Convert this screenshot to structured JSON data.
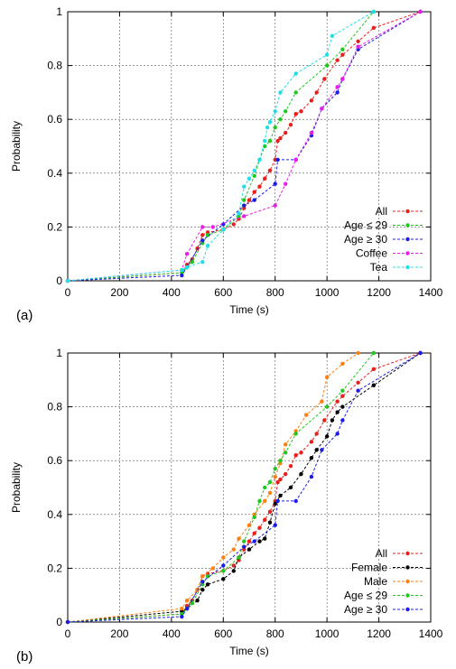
{
  "chart_data": [
    {
      "type": "line",
      "panel_label": "(a)",
      "xlabel": "Time (s)",
      "ylabel": "Probability",
      "xlim": [
        0,
        1400
      ],
      "ylim": [
        0,
        1
      ],
      "x_ticks": [
        "0",
        "200",
        "400",
        "600",
        "800",
        "1000",
        "1200",
        "1400"
      ],
      "y_ticks": [
        "0",
        "0.2",
        "0.4",
        "0.6",
        "0.8",
        "1"
      ],
      "grid": true,
      "legend_position": "bottom-right",
      "series": [
        {
          "name": "All",
          "color": "#e8201c",
          "points": [
            [
              0,
              0
            ],
            [
              440,
              0.03
            ],
            [
              460,
              0.06
            ],
            [
              480,
              0.08
            ],
            [
              500,
              0.12
            ],
            [
              520,
              0.17
            ],
            [
              540,
              0.18
            ],
            [
              600,
              0.19
            ],
            [
              640,
              0.21
            ],
            [
              660,
              0.23
            ],
            [
              680,
              0.27
            ],
            [
              700,
              0.3
            ],
            [
              720,
              0.33
            ],
            [
              740,
              0.35
            ],
            [
              760,
              0.38
            ],
            [
              780,
              0.41
            ],
            [
              800,
              0.45
            ],
            [
              810,
              0.52
            ],
            [
              820,
              0.53
            ],
            [
              840,
              0.55
            ],
            [
              860,
              0.58
            ],
            [
              880,
              0.62
            ],
            [
              900,
              0.63
            ],
            [
              940,
              0.67
            ],
            [
              960,
              0.7
            ],
            [
              990,
              0.75
            ],
            [
              1040,
              0.82
            ],
            [
              1060,
              0.84
            ],
            [
              1120,
              0.89
            ],
            [
              1180,
              0.94
            ],
            [
              1360,
              1
            ]
          ]
        },
        {
          "name": "Age ≤ 29",
          "color": "#1ec81e",
          "points": [
            [
              0,
              0
            ],
            [
              440,
              0.03
            ],
            [
              460,
              0.05
            ],
            [
              480,
              0.07
            ],
            [
              520,
              0.14
            ],
            [
              540,
              0.17
            ],
            [
              600,
              0.19
            ],
            [
              660,
              0.24
            ],
            [
              680,
              0.3
            ],
            [
              720,
              0.39
            ],
            [
              740,
              0.45
            ],
            [
              760,
              0.5
            ],
            [
              780,
              0.52
            ],
            [
              800,
              0.57
            ],
            [
              820,
              0.6
            ],
            [
              840,
              0.63
            ],
            [
              880,
              0.7
            ],
            [
              1000,
              0.8
            ],
            [
              1060,
              0.86
            ],
            [
              1180,
              1
            ]
          ]
        },
        {
          "name": "Age ≥ 30",
          "color": "#1c1ce8",
          "points": [
            [
              0,
              0
            ],
            [
              440,
              0.02
            ],
            [
              460,
              0.05
            ],
            [
              520,
              0.15
            ],
            [
              600,
              0.21
            ],
            [
              680,
              0.28
            ],
            [
              720,
              0.3
            ],
            [
              800,
              0.36
            ],
            [
              810,
              0.45
            ],
            [
              880,
              0.45
            ],
            [
              940,
              0.54
            ],
            [
              980,
              0.64
            ],
            [
              1040,
              0.7
            ],
            [
              1060,
              0.75
            ],
            [
              1120,
              0.86
            ],
            [
              1360,
              1
            ]
          ]
        },
        {
          "name": "Coffee",
          "color": "#e61ee6",
          "points": [
            [
              0,
              0
            ],
            [
              440,
              0.04
            ],
            [
              460,
              0.1
            ],
            [
              520,
              0.2
            ],
            [
              560,
              0.2
            ],
            [
              680,
              0.24
            ],
            [
              800,
              0.28
            ],
            [
              840,
              0.36
            ],
            [
              880,
              0.45
            ],
            [
              940,
              0.55
            ],
            [
              980,
              0.64
            ],
            [
              1040,
              0.72
            ],
            [
              1060,
              0.75
            ],
            [
              1120,
              0.87
            ],
            [
              1360,
              1
            ]
          ]
        },
        {
          "name": "Tea",
          "color": "#1ee0e6",
          "points": [
            [
              0,
              0
            ],
            [
              440,
              0.04
            ],
            [
              460,
              0.05
            ],
            [
              520,
              0.07
            ],
            [
              540,
              0.13
            ],
            [
              600,
              0.19
            ],
            [
              660,
              0.25
            ],
            [
              680,
              0.35
            ],
            [
              700,
              0.38
            ],
            [
              720,
              0.41
            ],
            [
              740,
              0.45
            ],
            [
              760,
              0.52
            ],
            [
              770,
              0.57
            ],
            [
              780,
              0.59
            ],
            [
              800,
              0.63
            ],
            [
              820,
              0.7
            ],
            [
              880,
              0.77
            ],
            [
              1000,
              0.84
            ],
            [
              1020,
              0.91
            ],
            [
              1180,
              1
            ]
          ]
        }
      ]
    },
    {
      "type": "line",
      "panel_label": "(b)",
      "xlabel": "Time (s)",
      "ylabel": "Probability",
      "xlim": [
        0,
        1400
      ],
      "ylim": [
        0,
        1
      ],
      "x_ticks": [
        "0",
        "200",
        "400",
        "600",
        "800",
        "1000",
        "1200",
        "1400"
      ],
      "y_ticks": [
        "0",
        "0.2",
        "0.4",
        "0.6",
        "0.8",
        "1"
      ],
      "grid": true,
      "legend_position": "bottom-right",
      "series": [
        {
          "name": "All",
          "color": "#e8201c",
          "points": [
            [
              0,
              0
            ],
            [
              440,
              0.03
            ],
            [
              460,
              0.06
            ],
            [
              480,
              0.08
            ],
            [
              500,
              0.12
            ],
            [
              520,
              0.17
            ],
            [
              540,
              0.18
            ],
            [
              600,
              0.19
            ],
            [
              640,
              0.21
            ],
            [
              660,
              0.23
            ],
            [
              680,
              0.27
            ],
            [
              700,
              0.3
            ],
            [
              720,
              0.33
            ],
            [
              740,
              0.35
            ],
            [
              760,
              0.38
            ],
            [
              780,
              0.41
            ],
            [
              800,
              0.45
            ],
            [
              810,
              0.52
            ],
            [
              820,
              0.53
            ],
            [
              840,
              0.55
            ],
            [
              860,
              0.58
            ],
            [
              880,
              0.62
            ],
            [
              900,
              0.63
            ],
            [
              940,
              0.67
            ],
            [
              960,
              0.7
            ],
            [
              990,
              0.75
            ],
            [
              1040,
              0.82
            ],
            [
              1060,
              0.84
            ],
            [
              1120,
              0.89
            ],
            [
              1180,
              0.94
            ],
            [
              1360,
              1
            ]
          ]
        },
        {
          "name": "Female",
          "color": "#000000",
          "points": [
            [
              0,
              0
            ],
            [
              440,
              0.04
            ],
            [
              460,
              0.05
            ],
            [
              500,
              0.08
            ],
            [
              520,
              0.12
            ],
            [
              540,
              0.14
            ],
            [
              600,
              0.16
            ],
            [
              640,
              0.19
            ],
            [
              660,
              0.24
            ],
            [
              700,
              0.27
            ],
            [
              740,
              0.3
            ],
            [
              760,
              0.31
            ],
            [
              780,
              0.37
            ],
            [
              800,
              0.44
            ],
            [
              820,
              0.47
            ],
            [
              860,
              0.5
            ],
            [
              900,
              0.55
            ],
            [
              940,
              0.61
            ],
            [
              960,
              0.64
            ],
            [
              1000,
              0.69
            ],
            [
              1020,
              0.75
            ],
            [
              1040,
              0.78
            ],
            [
              1060,
              0.8
            ],
            [
              1180,
              0.88
            ],
            [
              1360,
              1
            ]
          ]
        },
        {
          "name": "Male",
          "color": "#ff7f0e",
          "points": [
            [
              0,
              0
            ],
            [
              440,
              0.05
            ],
            [
              460,
              0.08
            ],
            [
              500,
              0.12
            ],
            [
              520,
              0.17
            ],
            [
              560,
              0.2
            ],
            [
              600,
              0.24
            ],
            [
              640,
              0.27
            ],
            [
              660,
              0.31
            ],
            [
              700,
              0.36
            ],
            [
              720,
              0.4
            ],
            [
              760,
              0.45
            ],
            [
              780,
              0.48
            ],
            [
              800,
              0.54
            ],
            [
              820,
              0.59
            ],
            [
              840,
              0.66
            ],
            [
              880,
              0.71
            ],
            [
              920,
              0.77
            ],
            [
              980,
              0.82
            ],
            [
              1000,
              0.91
            ],
            [
              1060,
              0.96
            ],
            [
              1120,
              1
            ]
          ]
        },
        {
          "name": "Age ≤ 29",
          "color": "#1ec81e",
          "points": [
            [
              0,
              0
            ],
            [
              440,
              0.03
            ],
            [
              460,
              0.05
            ],
            [
              480,
              0.07
            ],
            [
              520,
              0.14
            ],
            [
              540,
              0.17
            ],
            [
              600,
              0.19
            ],
            [
              660,
              0.24
            ],
            [
              680,
              0.3
            ],
            [
              720,
              0.39
            ],
            [
              740,
              0.45
            ],
            [
              760,
              0.5
            ],
            [
              780,
              0.52
            ],
            [
              800,
              0.57
            ],
            [
              820,
              0.6
            ],
            [
              840,
              0.63
            ],
            [
              880,
              0.7
            ],
            [
              1000,
              0.8
            ],
            [
              1060,
              0.86
            ],
            [
              1180,
              1
            ]
          ]
        },
        {
          "name": "Age ≥ 30",
          "color": "#1c1ce8",
          "points": [
            [
              0,
              0
            ],
            [
              440,
              0.02
            ],
            [
              460,
              0.05
            ],
            [
              520,
              0.15
            ],
            [
              600,
              0.21
            ],
            [
              680,
              0.28
            ],
            [
              720,
              0.3
            ],
            [
              800,
              0.36
            ],
            [
              810,
              0.45
            ],
            [
              880,
              0.45
            ],
            [
              940,
              0.54
            ],
            [
              980,
              0.64
            ],
            [
              1040,
              0.7
            ],
            [
              1060,
              0.75
            ],
            [
              1120,
              0.86
            ],
            [
              1360,
              1
            ]
          ]
        }
      ]
    }
  ]
}
